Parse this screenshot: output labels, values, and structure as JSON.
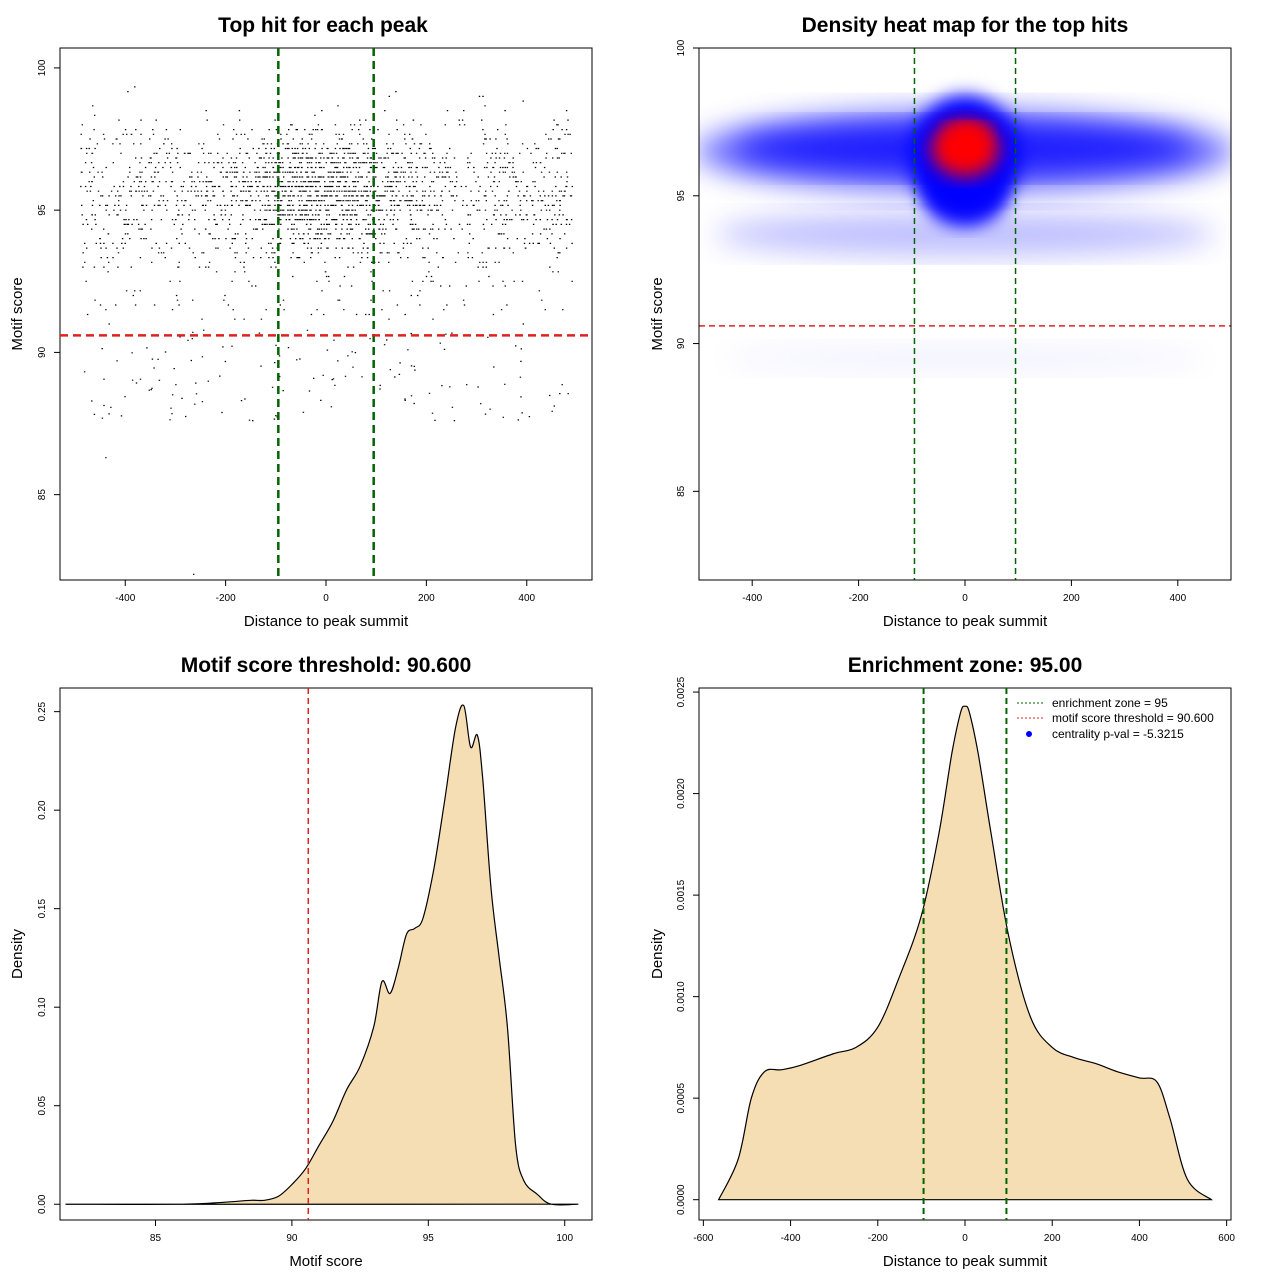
{
  "chart_data": [
    {
      "type": "scatter",
      "title": "Top hit for each peak",
      "xlabel": "Distance to peak summit",
      "ylabel": "Motif score",
      "xlim": [
        -530,
        530
      ],
      "ylim": [
        82.0,
        100.7
      ],
      "xticks": [
        -400,
        -200,
        0,
        200,
        400
      ],
      "xtick_labels": [
        "-400",
        "-200",
        "0",
        "200",
        "400"
      ],
      "yticks": [
        85,
        90,
        95,
        100
      ],
      "ytick_labels": [
        "85",
        "90",
        "95",
        "100"
      ],
      "vlines": [
        {
          "x": -95,
          "color": "#006400"
        },
        {
          "x": 95,
          "color": "#006400"
        }
      ],
      "hlines": [
        {
          "y": 90.6,
          "color": "#dd2222"
        }
      ],
      "point_color": "#000000",
      "points_description_range": {
        "x": [
          -490,
          490
        ],
        "y": [
          82.2,
          99.9
        ]
      }
    },
    {
      "type": "heatmap",
      "title": "Density heat map for the top hits",
      "xlabel": "Distance to peak summit",
      "ylabel": "Motif score",
      "xlim": [
        -500,
        500
      ],
      "ylim": [
        82.0,
        100.0
      ],
      "xticks": [
        -400,
        -200,
        0,
        200,
        400
      ],
      "xtick_labels": [
        "-400",
        "-200",
        "0",
        "200",
        "400"
      ],
      "yticks": [
        85,
        90,
        95,
        100
      ],
      "ytick_labels": [
        "85",
        "90",
        "95",
        "100"
      ],
      "vlines": [
        {
          "x": -95,
          "color": "#006400"
        },
        {
          "x": 95,
          "color": "#006400"
        }
      ],
      "hlines": [
        {
          "y": 90.6,
          "color": "#dd2222"
        }
      ],
      "colors": {
        "low": "#ffffff",
        "mid": "#0000ff",
        "high": "#ff0000"
      },
      "peak_center": {
        "x": 0,
        "y": 96.5
      }
    },
    {
      "type": "area",
      "title": "Motif score threshold: 90.600",
      "xlabel": "Motif score",
      "ylabel": "Density",
      "xlim": [
        81.5,
        101.0
      ],
      "ylim": [
        -0.008,
        0.262
      ],
      "xticks": [
        85,
        90,
        95,
        100
      ],
      "xtick_labels": [
        "85",
        "90",
        "95",
        "100"
      ],
      "yticks": [
        0.0,
        0.05,
        0.1,
        0.15,
        0.2,
        0.25
      ],
      "ytick_labels": [
        "0.00",
        "0.05",
        "0.10",
        "0.15",
        "0.20",
        "0.25"
      ],
      "fill": "#f5deb3",
      "vlines": [
        {
          "x": 90.6,
          "color": "#dd2222"
        }
      ],
      "x": [
        81.7,
        86.0,
        87.5,
        88.5,
        89.0,
        89.5,
        90.0,
        90.5,
        91.0,
        91.5,
        92.0,
        92.5,
        93.0,
        93.3,
        93.6,
        93.9,
        94.2,
        94.5,
        94.8,
        95.2,
        95.6,
        96.0,
        96.3,
        96.55,
        96.8,
        97.0,
        97.3,
        97.6,
        97.9,
        98.2,
        98.5,
        99.0,
        99.5,
        100.5
      ],
      "y": [
        0.0,
        0.0,
        0.001,
        0.002,
        0.002,
        0.004,
        0.01,
        0.018,
        0.03,
        0.042,
        0.058,
        0.07,
        0.09,
        0.113,
        0.107,
        0.12,
        0.137,
        0.14,
        0.145,
        0.17,
        0.205,
        0.242,
        0.253,
        0.232,
        0.238,
        0.215,
        0.16,
        0.125,
        0.09,
        0.03,
        0.012,
        0.005,
        0.0,
        0.0
      ]
    },
    {
      "type": "area",
      "title": "Enrichment zone: 95.00",
      "xlabel": "Distance to peak summit",
      "ylabel": "Density",
      "xlim": [
        -610,
        610
      ],
      "ylim": [
        -0.0001,
        0.00252
      ],
      "xticks": [
        -600,
        -400,
        -200,
        0,
        200,
        400,
        600
      ],
      "xtick_labels": [
        "-600",
        "-400",
        "-200",
        "0",
        "200",
        "400",
        "600"
      ],
      "yticks": [
        0.0,
        0.0005,
        0.001,
        0.0015,
        0.002,
        0.0025
      ],
      "ytick_labels": [
        "0.0000",
        "0.0005",
        "0.0010",
        "0.0015",
        "0.0020",
        "0.0025"
      ],
      "fill": "#f5deb3",
      "vlines": [
        {
          "x": -95,
          "color": "#006400"
        },
        {
          "x": 95,
          "color": "#006400"
        }
      ],
      "x": [
        -565,
        -520,
        -490,
        -460,
        -420,
        -380,
        -300,
        -250,
        -200,
        -150,
        -100,
        -60,
        -30,
        -10,
        0,
        10,
        30,
        60,
        100,
        150,
        200,
        250,
        300,
        350,
        400,
        440,
        470,
        510,
        565
      ],
      "y": [
        0.0,
        0.0002,
        0.0005,
        0.00063,
        0.00064,
        0.00066,
        0.00072,
        0.00075,
        0.00085,
        0.0011,
        0.0014,
        0.0018,
        0.0022,
        0.0024,
        0.00243,
        0.0024,
        0.0022,
        0.0018,
        0.0013,
        0.0009,
        0.00075,
        0.0007,
        0.00067,
        0.00063,
        0.0006,
        0.00058,
        0.0004,
        0.0001,
        0.0
      ],
      "legend": [
        {
          "label": "enrichment zone = 95",
          "color": "#006400",
          "style": "dotted-line"
        },
        {
          "label": "motif score threshold = 90.600",
          "color": "#dd2222",
          "style": "dotted-line"
        },
        {
          "label": "centrality p-val = -5.3215",
          "color": "#0000ff",
          "style": "point"
        }
      ],
      "legend_position": "top-right"
    }
  ]
}
